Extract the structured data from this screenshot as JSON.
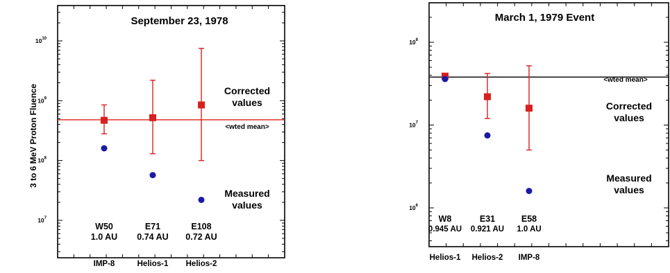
{
  "page": {
    "ylabel": "3 to 6 MeV Proton Fluence"
  },
  "chart_data": [
    {
      "type": "scatter",
      "title": "September 23, 1978",
      "ylabel": "3 to 6 MeV Proton Fluence",
      "yscale": "log",
      "ylim": [
        4000000,
        20000000000
      ],
      "yticks": [
        {
          "base": "10",
          "exp": "10",
          "value": 10000000000
        },
        {
          "base": "10",
          "exp": "9",
          "value": 1000000000
        },
        {
          "base": "10",
          "exp": "8",
          "value": 100000000
        },
        {
          "base": "10",
          "exp": "7",
          "value": 10000000
        }
      ],
      "categories": [
        "IMP-8",
        "Helios-1",
        "Helios-2"
      ],
      "spacecraft_labels": [
        {
          "name": "W50",
          "distance": "1.0 AU"
        },
        {
          "name": "E71",
          "distance": "0.74 AU"
        },
        {
          "name": "E108",
          "distance": "0.72 AU"
        }
      ],
      "mean": {
        "value": 480000000,
        "label": "<wted mean>",
        "color": "#e0302a"
      },
      "annotations": {
        "corrected": [
          "Corrected",
          "values"
        ],
        "measured": [
          "Measured",
          "values"
        ]
      },
      "series": [
        {
          "name": "Corrected values",
          "color": "#d82020",
          "marker": "square",
          "values": [
            470000000,
            520000000,
            850000000
          ],
          "err_low": [
            280000000,
            130000000,
            100000000
          ],
          "err_high": [
            850000000,
            2200000000,
            7500000000
          ]
        },
        {
          "name": "Measured values",
          "color": "#1a1aa6",
          "marker": "circle",
          "values": [
            160000000,
            57000000,
            22000000
          ]
        }
      ]
    },
    {
      "type": "scatter",
      "title": "March 1, 1979 Event",
      "ylabel": "",
      "yscale": "log",
      "ylim": [
        500000,
        3000000000
      ],
      "yticks": [
        {
          "base": "10",
          "exp": "8",
          "value": 100000000
        },
        {
          "base": "10",
          "exp": "7",
          "value": 10000000
        },
        {
          "base": "10",
          "exp": "6",
          "value": 1000000
        }
      ],
      "categories": [
        "Helios-1",
        "Helios-2",
        "IMP-8"
      ],
      "spacecraft_labels": [
        {
          "name": "W8",
          "distance": "0.945 AU"
        },
        {
          "name": "E31",
          "distance": "0.921 AU"
        },
        {
          "name": "E58",
          "distance": "1.0 AU"
        }
      ],
      "mean": {
        "value": 38000000,
        "label": "<wted mean>",
        "color": "#111111"
      },
      "annotations": {
        "corrected": [
          "Corrected",
          "values"
        ],
        "measured": [
          "Measured",
          "values"
        ]
      },
      "series": [
        {
          "name": "Corrected values",
          "color": "#d82020",
          "marker": "square",
          "values": [
            39000000,
            22000000,
            16000000
          ],
          "err_low": [
            36000000,
            12000000,
            5000000
          ],
          "err_high": [
            42000000,
            42000000,
            52000000
          ]
        },
        {
          "name": "Measured values",
          "color": "#1a1aa6",
          "marker": "circle",
          "values": [
            36000000,
            7500000,
            1600000
          ]
        }
      ]
    }
  ]
}
